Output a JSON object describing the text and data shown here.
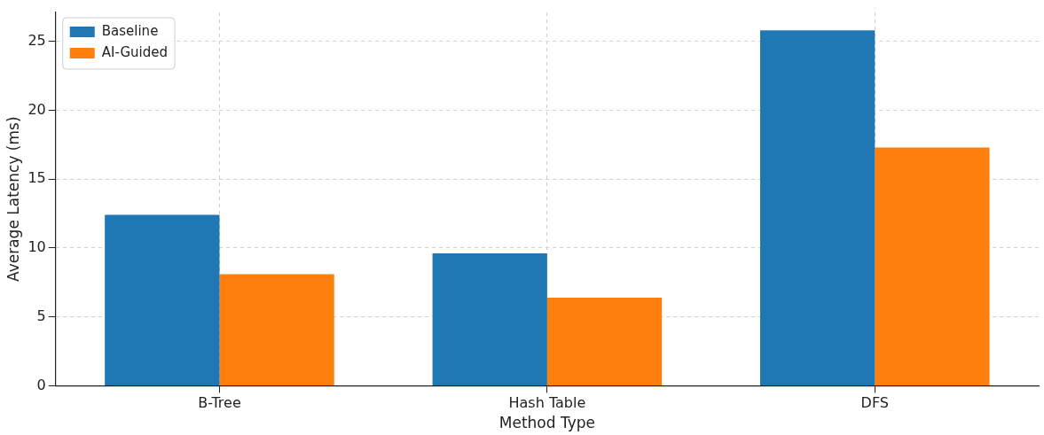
{
  "chart_data": {
    "type": "bar",
    "xlabel": "Method Type",
    "ylabel": "Average Latency (ms)",
    "categories": [
      "B-Tree",
      "Hash Table",
      "DFS"
    ],
    "series": [
      {
        "name": "Baseline",
        "color": "#1f77b4",
        "values": [
          12.4,
          9.6,
          25.8
        ]
      },
      {
        "name": "AI-Guided",
        "color": "#ff7f0e",
        "values": [
          8.1,
          6.4,
          17.3
        ]
      }
    ],
    "ylim": [
      0,
      27.1
    ],
    "yticks": [
      0,
      5,
      10,
      15,
      20,
      25
    ],
    "grid": true,
    "legend": "top left"
  }
}
